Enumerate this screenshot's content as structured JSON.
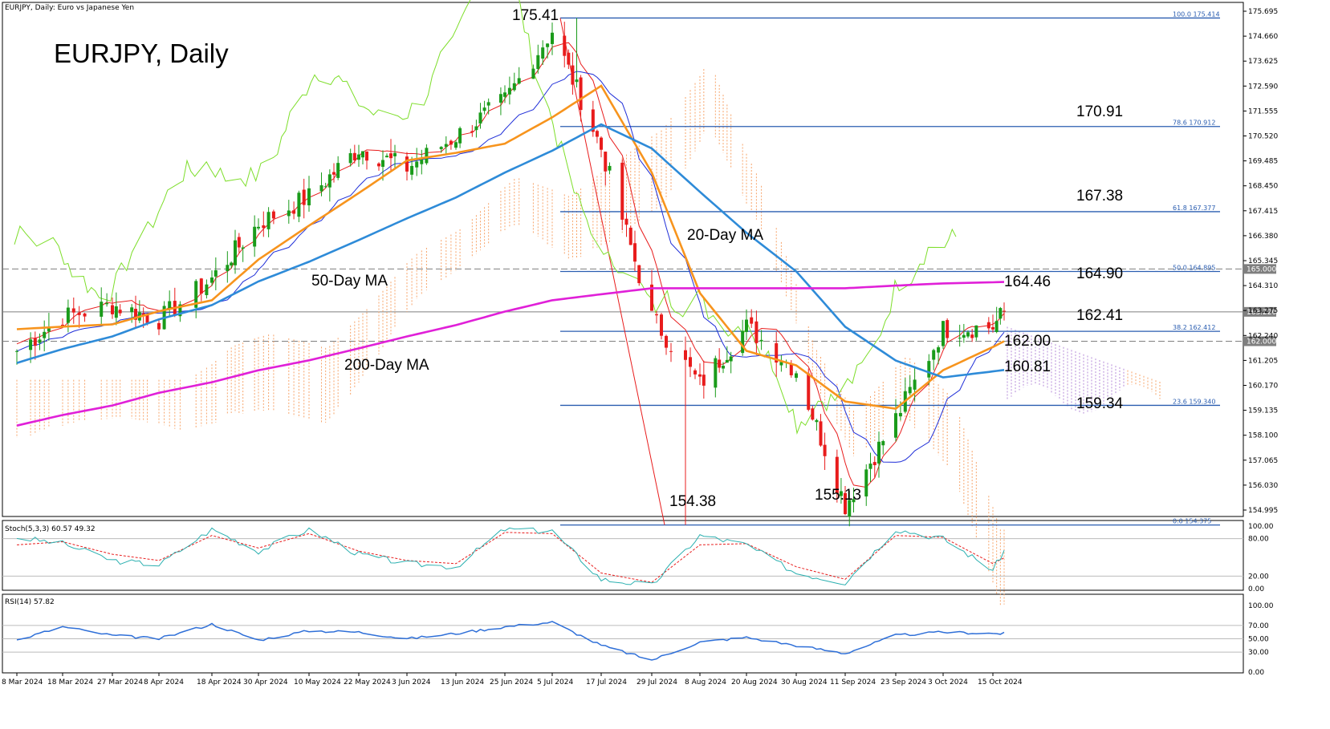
{
  "chart_data": {
    "type": "candlestick",
    "symbol_header": "EURJPY, Daily:  Euro vs Japanese Yen",
    "title": "EURJPY, Daily",
    "ylim": [
      153.5,
      176.3
    ],
    "y_ticks": [
      "175.695",
      "174.660",
      "173.625",
      "172.590",
      "171.555",
      "170.520",
      "169.485",
      "168.450",
      "167.415",
      "166.380",
      "165.345",
      "164.310",
      "163.275",
      "162.240",
      "161.205",
      "160.170",
      "159.135",
      "158.100",
      "157.065",
      "156.030",
      "154.995"
    ],
    "x_tick_labels": [
      "8 Mar 2024",
      "18 Mar 2024",
      "27 Mar 2024",
      "8 Apr 2024",
      "18 Apr 2024",
      "30 Apr 2024",
      "10 May 2024",
      "22 May 2024",
      "3 Jun 2024",
      "13 Jun 2024",
      "25 Jun 2024",
      "5 Jul 2024",
      "17 Jul 2024",
      "29 Jul 2024",
      "8 Aug 2024",
      "20 Aug 2024",
      "30 Aug 2024",
      "11 Sep 2024",
      "23 Sep 2024",
      "3 Oct 2024",
      "15 Oct 2024"
    ],
    "price_anchors": {
      "x": [
        "8 Mar 2024",
        "18 Mar 2024",
        "27 Mar 2024",
        "8 Apr 2024",
        "18 Apr 2024",
        "30 Apr 2024",
        "10 May 2024",
        "22 May 2024",
        "3 Jun 2024",
        "13 Jun 2024",
        "25 Jun 2024",
        "5 Jul 2024",
        "17 Jul 2024",
        "29 Jul 2024",
        "8 Aug 2024",
        "20 Aug 2024",
        "30 Aug 2024",
        "11 Sep 2024",
        "23 Sep 2024",
        "3 Oct 2024",
        "15 Oct 2024",
        "18 Oct 2024"
      ],
      "close": [
        161.6,
        163.0,
        163.5,
        162.9,
        164.6,
        166.9,
        168.0,
        170.0,
        169.2,
        170.5,
        172.0,
        174.9,
        170.0,
        163.0,
        160.2,
        162.6,
        160.8,
        155.2,
        158.8,
        162.5,
        162.6,
        163.22
      ]
    },
    "series": [
      {
        "name": "20-Day MA",
        "color": "#f7941d",
        "x": [
          "8 Mar 2024",
          "27 Mar 2024",
          "18 Apr 2024",
          "10 May 2024",
          "3 Jun 2024",
          "25 Jun 2024",
          "17 Jul 2024",
          "29 Jul 2024",
          "8 Aug 2024",
          "20 Aug 2024",
          "30 Aug 2024",
          "11 Sep 2024",
          "23 Sep 2024",
          "3 Oct 2024",
          "18 Oct 2024"
        ],
        "values": [
          162.5,
          162.7,
          163.7,
          166.8,
          169.5,
          170.2,
          172.6,
          169.0,
          164.0,
          161.6,
          161.0,
          159.5,
          159.2,
          160.8,
          162.0
        ]
      },
      {
        "name": "50-Day MA",
        "color": "#2e8bd8",
        "x": [
          "8 Mar 2024",
          "27 Mar 2024",
          "18 Apr 2024",
          "10 May 2024",
          "3 Jun 2024",
          "25 Jun 2024",
          "17 Jul 2024",
          "29 Jul 2024",
          "8 Aug 2024",
          "20 Aug 2024",
          "30 Aug 2024",
          "11 Sep 2024",
          "23 Sep 2024",
          "3 Oct 2024",
          "18 Oct 2024"
        ],
        "values": [
          161.1,
          162.2,
          163.5,
          165.3,
          167.1,
          169.0,
          171.0,
          170.0,
          168.2,
          166.5,
          164.9,
          162.6,
          161.2,
          160.5,
          160.81
        ]
      },
      {
        "name": "200-Day MA",
        "color": "#e020d8",
        "x": [
          "8 Mar 2024",
          "18 Apr 2024",
          "3 Jun 2024",
          "5 Jul 2024",
          "29 Jul 2024",
          "20 Aug 2024",
          "11 Sep 2024",
          "3 Oct 2024",
          "18 Oct 2024"
        ],
        "values": [
          158.5,
          160.3,
          162.2,
          163.7,
          164.2,
          164.2,
          164.2,
          164.4,
          164.46
        ]
      }
    ],
    "fibonacci": [
      {
        "level": "100.0",
        "value": "175.414",
        "price": 175.414
      },
      {
        "level": "78.6",
        "value": "170.912",
        "price": 170.912
      },
      {
        "level": "61.8",
        "value": "167.377",
        "price": 167.377
      },
      {
        "level": "50.0",
        "value": "164.895",
        "price": 164.895
      },
      {
        "level": "38.2",
        "value": "162.412",
        "price": 162.412
      },
      {
        "level": "23.6",
        "value": "159.340",
        "price": 159.34
      },
      {
        "level": "0.0",
        "value": "154.375",
        "price": 154.375
      }
    ],
    "price_tags": [
      {
        "text": "165.000",
        "price": 165.0,
        "color": "#7f7f7f"
      },
      {
        "text": "163.220",
        "price": 163.22,
        "color": "#7f7f7f"
      },
      {
        "text": "162.000",
        "price": 162.0,
        "color": "#7f7f7f"
      }
    ],
    "annotations": {
      "high": "175.41",
      "low_jul": "154.38",
      "low_sep": "155.13",
      "lvl_17091": "170.91",
      "lvl_16738": "167.38",
      "lvl_16490": "164.90",
      "lvl_16446": "164.46",
      "lvl_16241": "162.41",
      "lvl_16200": "162.00",
      "lvl_16081": "160.81",
      "lvl_15934": "159.34",
      "ma20": "20-Day MA",
      "ma50": "50-Day MA",
      "ma200": "200-Day MA"
    },
    "stochastic": {
      "label": "Stoch(5,3,3) 60.57 49.32",
      "ticks": [
        "100.00",
        "80.00",
        "20.00",
        "0.00"
      ],
      "x": [
        "8 Mar 2024",
        "18 Mar 2024",
        "27 Mar 2024",
        "8 Apr 2024",
        "18 Apr 2024",
        "30 Apr 2024",
        "10 May 2024",
        "22 May 2024",
        "3 Jun 2024",
        "13 Jun 2024",
        "25 Jun 2024",
        "5 Jul 2024",
        "17 Jul 2024",
        "29 Jul 2024",
        "8 Aug 2024",
        "20 Aug 2024",
        "30 Aug 2024",
        "11 Sep 2024",
        "23 Sep 2024",
        "3 Oct 2024",
        "15 Oct 2024",
        "18 Oct 2024"
      ],
      "k": [
        82,
        72,
        45,
        38,
        95,
        60,
        95,
        55,
        40,
        35,
        95,
        92,
        15,
        5,
        85,
        70,
        25,
        10,
        95,
        80,
        30,
        60.57
      ],
      "d": [
        70,
        75,
        55,
        45,
        85,
        65,
        88,
        60,
        45,
        40,
        90,
        88,
        25,
        10,
        70,
        72,
        35,
        15,
        85,
        82,
        40,
        49.32
      ]
    },
    "rsi": {
      "label": "RSI(14) 57.82",
      "ticks": [
        "100.00",
        "70.00",
        "50.00",
        "30.00",
        "0.00"
      ],
      "x": [
        "8 Mar 2024",
        "18 Mar 2024",
        "27 Mar 2024",
        "8 Apr 2024",
        "18 Apr 2024",
        "30 Apr 2024",
        "10 May 2024",
        "22 May 2024",
        "3 Jun 2024",
        "13 Jun 2024",
        "25 Jun 2024",
        "5 Jul 2024",
        "17 Jul 2024",
        "29 Jul 2024",
        "8 Aug 2024",
        "20 Aug 2024",
        "30 Aug 2024",
        "11 Sep 2024",
        "23 Sep 2024",
        "3 Oct 2024",
        "15 Oct 2024",
        "18 Oct 2024"
      ],
      "values": [
        48,
        68,
        55,
        50,
        72,
        48,
        62,
        60,
        50,
        58,
        68,
        75,
        40,
        18,
        45,
        52,
        40,
        28,
        55,
        60,
        58,
        57.82
      ]
    }
  },
  "colors": {
    "bull": "#1a9b1a",
    "bear": "#e81c1c",
    "fib": "#2a5db0",
    "tenkan": "#e81c1c",
    "kijun": "#1f2ed8",
    "chikou": "#7dde2a",
    "cloud_bull": "#f7a46a",
    "cloud_bear": "#b48ad8"
  }
}
